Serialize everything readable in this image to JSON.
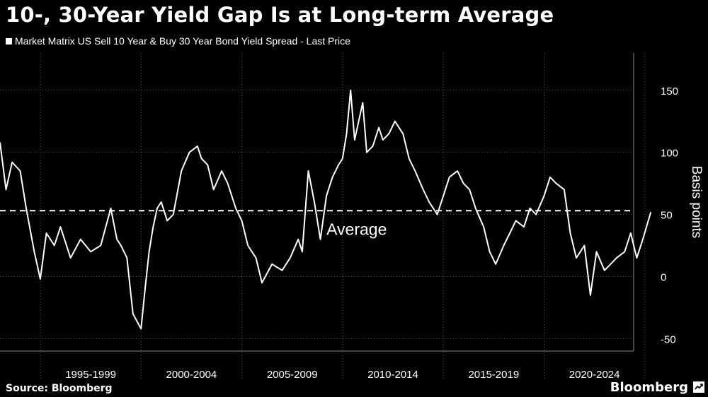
{
  "chart_data": {
    "type": "line",
    "title": "10-, 30-Year Yield Gap Is at Long-term Average",
    "series": [
      {
        "name": "Market Matrix US Sell 10 Year & Buy 30 Year Bond Yield Spread - Last Price",
        "x": [
          1993.0,
          1993.3,
          1993.6,
          1994.0,
          1994.3,
          1994.7,
          1995.0,
          1995.3,
          1995.7,
          1996.0,
          1996.5,
          1997.0,
          1997.5,
          1998.0,
          1998.5,
          1998.8,
          1999.0,
          1999.3,
          1999.6,
          2000.0,
          2000.2,
          2000.4,
          2000.6,
          2000.8,
          2001.0,
          2001.3,
          2001.6,
          2002.0,
          2002.4,
          2002.8,
          2003.0,
          2003.3,
          2003.6,
          2004.0,
          2004.3,
          2004.7,
          2005.0,
          2005.3,
          2005.7,
          2006.0,
          2006.5,
          2007.0,
          2007.4,
          2007.8,
          2008.0,
          2008.3,
          2008.6,
          2008.9,
          2009.2,
          2009.5,
          2009.8,
          2010.0,
          2010.2,
          2010.4,
          2010.6,
          2010.8,
          2011.0,
          2011.2,
          2011.5,
          2011.8,
          2012.0,
          2012.3,
          2012.6,
          2013.0,
          2013.3,
          2013.6,
          2014.0,
          2014.3,
          2014.7,
          2015.0,
          2015.3,
          2015.7,
          2016.0,
          2016.3,
          2016.6,
          2017.0,
          2017.3,
          2017.6,
          2018.0,
          2018.3,
          2018.6,
          2019.0,
          2019.3,
          2019.6,
          2020.0,
          2020.3,
          2020.6,
          2021.0,
          2021.3,
          2021.6,
          2022.0,
          2022.3,
          2022.6,
          2023.0,
          2023.3,
          2023.6,
          2024.0,
          2024.3,
          2024.6,
          2024.9,
          2025.3
        ],
        "values": [
          108,
          70,
          92,
          85,
          55,
          20,
          -2,
          35,
          25,
          40,
          15,
          30,
          20,
          25,
          55,
          30,
          25,
          15,
          -30,
          -42,
          -10,
          20,
          40,
          55,
          60,
          45,
          50,
          85,
          100,
          105,
          95,
          90,
          70,
          85,
          75,
          55,
          45,
          25,
          15,
          -5,
          10,
          5,
          15,
          30,
          20,
          85,
          60,
          30,
          65,
          80,
          90,
          95,
          115,
          150,
          110,
          125,
          140,
          100,
          105,
          120,
          110,
          115,
          125,
          115,
          95,
          85,
          70,
          60,
          50,
          65,
          80,
          85,
          75,
          70,
          55,
          40,
          20,
          10,
          25,
          35,
          45,
          40,
          55,
          50,
          65,
          80,
          75,
          70,
          35,
          15,
          25,
          -15,
          20,
          5,
          10,
          15,
          20,
          35,
          15,
          30,
          52
        ]
      }
    ],
    "average": 53,
    "average_label": "Average",
    "ylabel": "Basis points",
    "ylim": [
      -60,
      180
    ],
    "yticks": [
      150,
      100,
      50,
      0,
      -50
    ],
    "xlim": [
      1993.0,
      2025.5
    ],
    "x_periods": [
      {
        "label": "1995-1999",
        "start": 1995,
        "end": 2000
      },
      {
        "label": "2000-2004",
        "start": 2000,
        "end": 2005
      },
      {
        "label": "2005-2009",
        "start": 2005,
        "end": 2010
      },
      {
        "label": "2010-2014",
        "start": 2010,
        "end": 2015
      },
      {
        "label": "2015-2019",
        "start": 2015,
        "end": 2020
      },
      {
        "label": "2020-2024",
        "start": 2020,
        "end": 2025
      }
    ],
    "colors": {
      "line": "#ffffff",
      "grid": "#555555",
      "background": "#000000"
    }
  },
  "footer": {
    "source": "Source: Bloomberg",
    "brand": "Bloomberg"
  }
}
